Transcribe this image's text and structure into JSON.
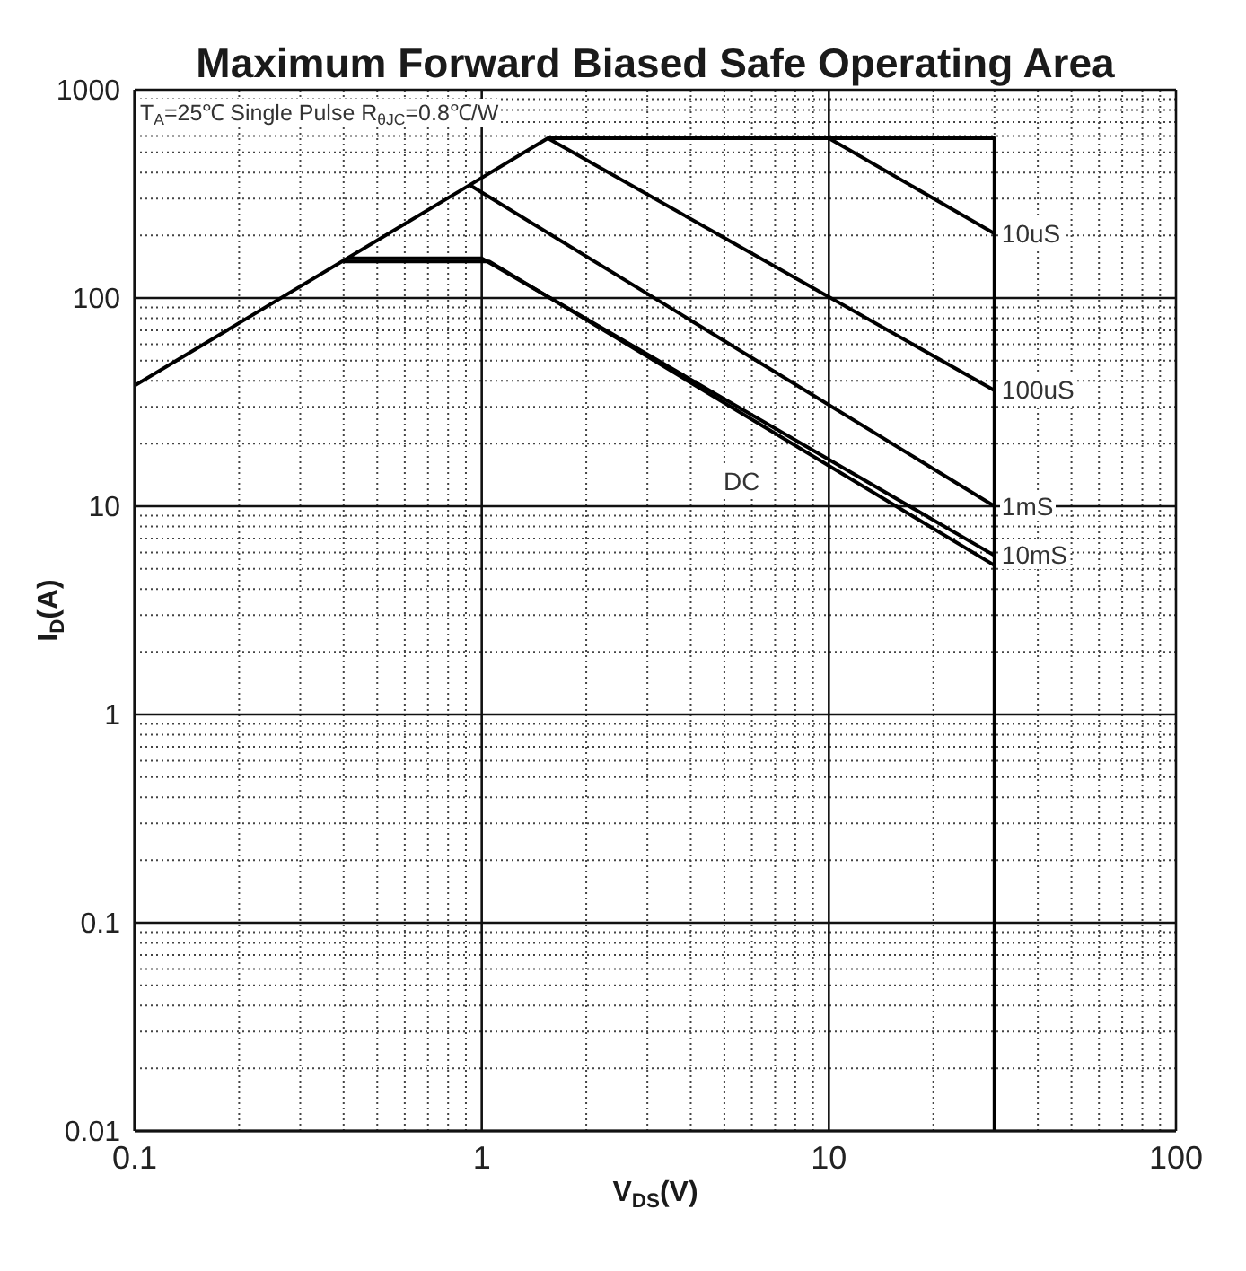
{
  "chart_data": {
    "type": "line",
    "title": "Maximum Forward Biased Safe Operating Area",
    "xlabel": "V$_{DS}$(V)",
    "ylabel": "I$_{D}$(A)",
    "annotations": [
      "T$_{A}$=25℃ Single Pulse R$_{θJC}$=0.8℃/W"
    ],
    "log": "xy",
    "grid": true,
    "xlim": [
      0.1,
      100
    ],
    "ylim": [
      0.01,
      1000
    ],
    "xticks": [
      0.1,
      {
        "value": 0.2,
        "label": null
      },
      {
        "value": 0.3,
        "label": null
      },
      {
        "value": 0.4,
        "label": null
      },
      {
        "value": 0.5,
        "label": null
      },
      {
        "value": 0.6,
        "label": null
      },
      {
        "value": 0.7,
        "label": null
      },
      {
        "value": 0.8,
        "label": null
      },
      {
        "value": 0.9,
        "label": null
      },
      1,
      {
        "value": 2,
        "label": null
      },
      {
        "value": 3,
        "label": null
      },
      {
        "value": 4,
        "label": null
      },
      {
        "value": 5,
        "label": null
      },
      {
        "value": 6,
        "label": null
      },
      {
        "value": 7,
        "label": null
      },
      {
        "value": 8,
        "label": null
      },
      {
        "value": 9,
        "label": null
      },
      10,
      {
        "value": 20,
        "label": null
      },
      {
        "value": 30,
        "label": null
      },
      {
        "value": 40,
        "label": null
      },
      {
        "value": 50,
        "label": null
      },
      {
        "value": 60,
        "label": null
      },
      {
        "value": 70,
        "label": null
      },
      {
        "value": 80,
        "label": null
      },
      {
        "value": 90,
        "label": null
      },
      100
    ],
    "yticks": [
      0.01,
      {
        "value": 0.02,
        "label": null
      },
      {
        "value": 0.03,
        "label": null
      },
      {
        "value": 0.04,
        "label": null
      },
      {
        "value": 0.05,
        "label": null
      },
      {
        "value": 0.06,
        "label": null
      },
      {
        "value": 0.07,
        "label": null
      },
      {
        "value": 0.08,
        "label": null
      },
      {
        "value": 0.09,
        "label": null
      },
      0.1,
      {
        "value": 0.2,
        "label": null
      },
      {
        "value": 0.3,
        "label": null
      },
      {
        "value": 0.4,
        "label": null
      },
      {
        "value": 0.5,
        "label": null
      },
      {
        "value": 0.6,
        "label": null
      },
      {
        "value": 0.7,
        "label": null
      },
      {
        "value": 0.8,
        "label": null
      },
      {
        "value": 0.9,
        "label": null
      },
      1,
      {
        "value": 2,
        "label": null
      },
      {
        "value": 3,
        "label": null
      },
      {
        "value": 4,
        "label": null
      },
      {
        "value": 5,
        "label": null
      },
      {
        "value": 6,
        "label": null
      },
      {
        "value": 7,
        "label": null
      },
      {
        "value": 8,
        "label": null
      },
      {
        "value": 9,
        "label": null
      },
      10,
      {
        "value": 20,
        "label": null
      },
      {
        "value": 30,
        "label": null
      },
      {
        "value": 40,
        "label": null
      },
      {
        "value": 50,
        "label": null
      },
      {
        "value": 60,
        "label": null
      },
      {
        "value": 70,
        "label": null
      },
      {
        "value": 80,
        "label": null
      },
      {
        "value": 90,
        "label": null
      },
      100,
      {
        "value": 200,
        "label": null
      },
      {
        "value": 300,
        "label": null
      },
      {
        "value": 400,
        "label": null
      },
      {
        "value": 500,
        "label": null
      },
      {
        "value": 600,
        "label": null
      },
      {
        "value": 700,
        "label": null
      },
      {
        "value": 800,
        "label": null
      },
      {
        "value": 900,
        "label": null
      },
      1000
    ],
    "series": [
      {
        "x": [
          0.1,
          1.55,
          30,
          30
        ],
        "values": [
          38,
          585,
          585,
          0.01
        ],
        "color": "#000000"
      },
      {
        "name": "10uS",
        "x": [
          10,
          30
        ],
        "values": [
          585,
          204
        ],
        "color": "#000000"
      },
      {
        "name": "100uS",
        "x": [
          1.55,
          30
        ],
        "values": [
          585,
          36
        ],
        "color": "#000000"
      },
      {
        "name": "1mS",
        "x": [
          0.92,
          30
        ],
        "values": [
          350,
          10
        ],
        "color": "#000000"
      },
      {
        "name": "10mS",
        "x": [
          0.41,
          1,
          30
        ],
        "values": [
          155,
          155,
          5.8
        ],
        "color": "#000000"
      },
      {
        "name": "DC",
        "x": [
          0.4,
          1.05,
          30
        ],
        "values": [
          150,
          150,
          5.2
        ],
        "color": "#000000"
      }
    ]
  }
}
